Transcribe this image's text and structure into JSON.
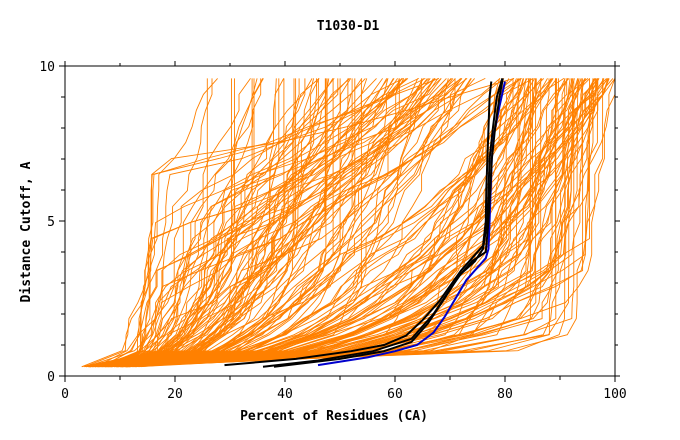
{
  "chart_data": {
    "type": "line",
    "title": "T1030-D1",
    "xlabel": "Percent of Residues (CA)",
    "ylabel": "Distance Cutoff, A",
    "xlim": [
      0,
      100
    ],
    "ylim": [
      0,
      10
    ],
    "x_ticks": [
      0,
      20,
      40,
      60,
      80,
      100
    ],
    "x_tick_labels": [
      "0",
      "20",
      "40",
      "60",
      "80",
      "100"
    ],
    "y_ticks": [
      0,
      5,
      10
    ],
    "y_tick_labels": [
      "0",
      "5",
      "10"
    ],
    "grid": false,
    "legend": "none",
    "colors": {
      "background_models": "#ff8000",
      "highlight_black": "#000000",
      "highlight_blue": "#0000cc",
      "axis": "#000000"
    },
    "series": [
      {
        "color": "#0000cc",
        "points": [
          [
            46,
            0.35
          ],
          [
            55,
            0.6
          ],
          [
            60,
            0.8
          ],
          [
            64,
            1.0
          ],
          [
            67,
            1.4
          ],
          [
            69,
            1.9
          ],
          [
            71,
            2.5
          ],
          [
            73,
            3.1
          ],
          [
            75,
            3.5
          ],
          [
            76.5,
            3.8
          ],
          [
            77,
            4.1
          ],
          [
            77.2,
            5
          ],
          [
            77.4,
            6
          ],
          [
            77.6,
            7
          ],
          [
            78,
            7.8
          ],
          [
            79,
            8.7
          ],
          [
            80,
            9.5
          ]
        ]
      },
      {
        "color": "#000000",
        "points": [
          [
            29,
            0.35
          ],
          [
            42,
            0.55
          ],
          [
            52,
            0.8
          ],
          [
            58,
            1.0
          ],
          [
            62,
            1.3
          ],
          [
            65,
            1.8
          ],
          [
            68,
            2.4
          ],
          [
            70,
            2.9
          ],
          [
            72,
            3.4
          ],
          [
            74,
            3.8
          ],
          [
            76,
            4.2
          ],
          [
            76.5,
            5
          ],
          [
            76.6,
            6
          ],
          [
            76.8,
            7
          ],
          [
            77,
            8
          ],
          [
            77.2,
            9
          ],
          [
            77.5,
            9.5
          ]
        ]
      },
      {
        "color": "#000000",
        "points": [
          [
            36,
            0.3
          ],
          [
            46,
            0.5
          ],
          [
            56,
            0.8
          ],
          [
            63,
            1.2
          ],
          [
            67,
            2.0
          ],
          [
            70,
            2.8
          ],
          [
            72,
            3.3
          ],
          [
            74.5,
            3.7
          ],
          [
            76,
            4.1
          ],
          [
            76.8,
            5
          ],
          [
            77,
            6
          ],
          [
            77.2,
            7
          ],
          [
            77.8,
            8
          ],
          [
            78.5,
            9
          ],
          [
            79.5,
            9.6
          ]
        ]
      },
      {
        "color": "#000000",
        "points": [
          [
            38,
            0.3
          ],
          [
            50,
            0.55
          ],
          [
            58,
            0.8
          ],
          [
            63,
            1.1
          ],
          [
            66,
            1.7
          ],
          [
            69,
            2.5
          ],
          [
            71.5,
            3.2
          ],
          [
            74,
            3.7
          ],
          [
            76.5,
            4.0
          ],
          [
            77,
            5
          ],
          [
            77.3,
            6
          ],
          [
            77.6,
            7
          ],
          [
            78.2,
            8
          ],
          [
            79,
            9
          ],
          [
            79.6,
            9.6
          ]
        ]
      }
    ],
    "background_series_count": 200
  }
}
